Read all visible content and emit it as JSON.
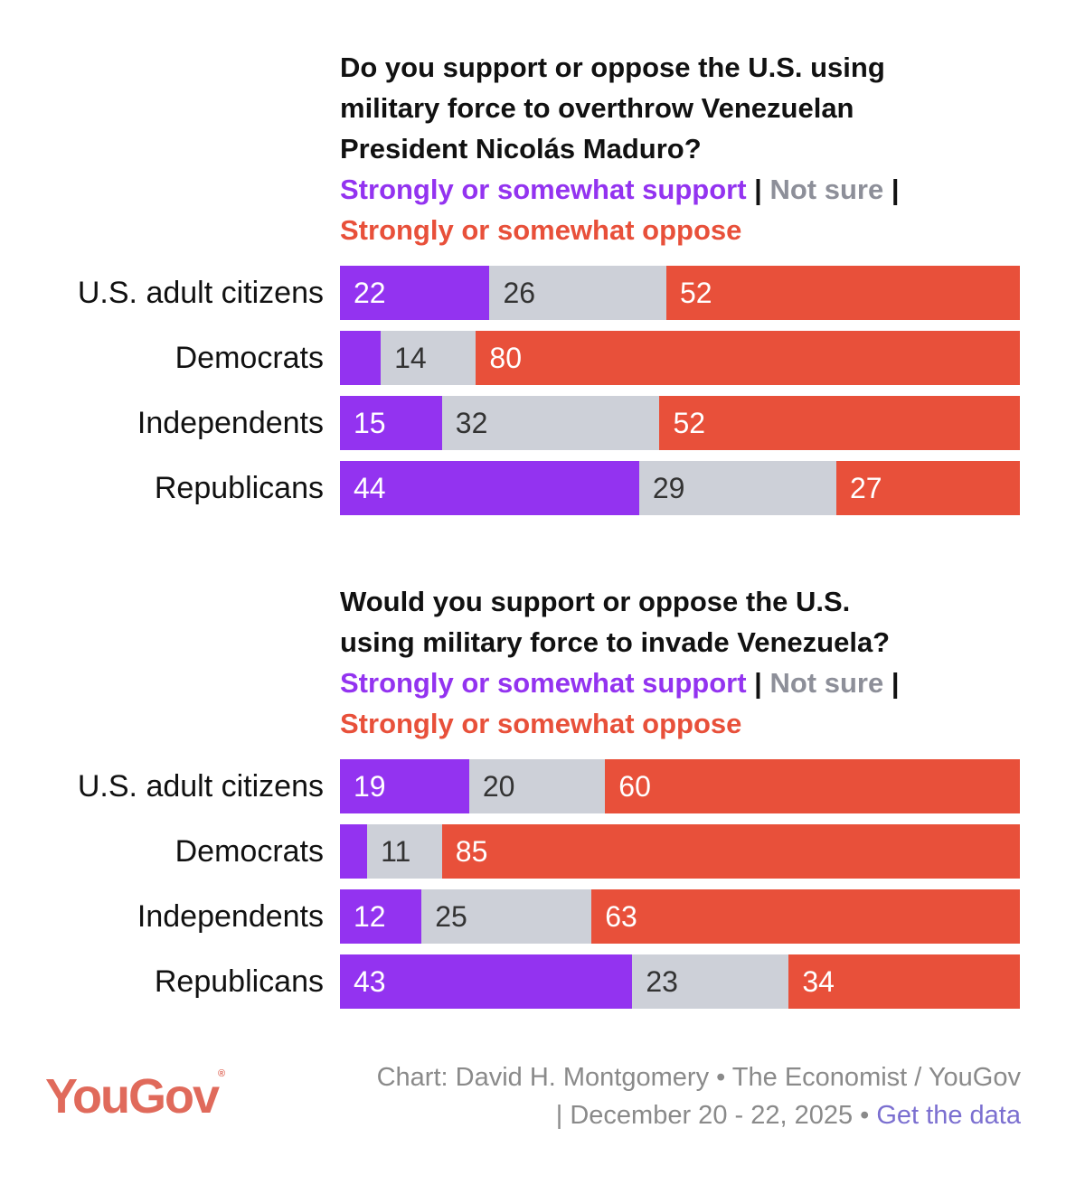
{
  "colors": {
    "support": "#9333f0",
    "not_sure": "#cdd0d8",
    "oppose": "#e8503a"
  },
  "chart_data": [
    {
      "type": "bar",
      "stacked": true,
      "orientation": "horizontal",
      "title": "Do you support or oppose the U.S. using military force to overthrow Venezuelan President Nicolás Maduro?",
      "title_lines": [
        "Do you support or oppose the U.S. using",
        "military force to overthrow Venezuelan",
        "President Nicolás Maduro?"
      ],
      "legend": {
        "support": "Strongly or somewhat support",
        "not_sure": "Not sure",
        "oppose": "Strongly or somewhat oppose",
        "sep": "|"
      },
      "categories": [
        "U.S. adult citizens",
        "Democrats",
        "Independents",
        "Republicans"
      ],
      "series": [
        {
          "name": "Strongly or somewhat support",
          "values": [
            22,
            6,
            15,
            44
          ],
          "labels": [
            "22",
            "",
            "15",
            "44"
          ]
        },
        {
          "name": "Not sure",
          "values": [
            26,
            14,
            32,
            29
          ],
          "labels": [
            "26",
            "14",
            "32",
            "29"
          ]
        },
        {
          "name": "Strongly or somewhat oppose",
          "values": [
            52,
            80,
            52,
            27
          ],
          "labels": [
            "52",
            "80",
            "52",
            "27"
          ]
        }
      ],
      "xlim": [
        0,
        100
      ]
    },
    {
      "type": "bar",
      "stacked": true,
      "orientation": "horizontal",
      "title": "Would you support or oppose the U.S. using military force to invade Venezuela?",
      "title_lines": [
        "Would you support or oppose the U.S.",
        "using military force to invade Venezuela?"
      ],
      "legend": {
        "support": "Strongly or somewhat support",
        "not_sure": "Not sure",
        "oppose": "Strongly or somewhat oppose",
        "sep": "|"
      },
      "categories": [
        "U.S. adult citizens",
        "Democrats",
        "Independents",
        "Republicans"
      ],
      "series": [
        {
          "name": "Strongly or somewhat support",
          "values": [
            19,
            4,
            12,
            43
          ],
          "labels": [
            "19",
            "",
            "12",
            "43"
          ]
        },
        {
          "name": "Not sure",
          "values": [
            20,
            11,
            25,
            23
          ],
          "labels": [
            "20",
            "11",
            "25",
            "23"
          ]
        },
        {
          "name": "Strongly or somewhat oppose",
          "values": [
            60,
            85,
            63,
            34
          ],
          "labels": [
            "60",
            "85",
            "63",
            "34"
          ]
        }
      ],
      "xlim": [
        0,
        100
      ]
    }
  ],
  "footer": {
    "logo": "YouGov",
    "logo_mark": "®",
    "line1": "Chart: David H. Montgomery • The Economist / YouGov",
    "line2": "| December 20 - 22, 2025 • ",
    "link": "Get the data"
  }
}
